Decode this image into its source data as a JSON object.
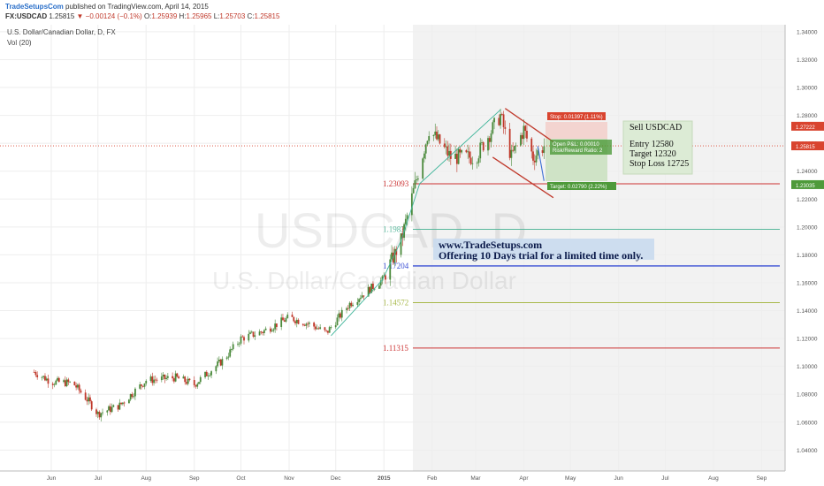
{
  "header": {
    "publisher": "TradeSetupsCom",
    "published_text": "published on TradingView.com, April 14, 2015",
    "symbol": "FX:USDCAD",
    "last": "1.25815",
    "change": "−0.00124 (−0.1%)",
    "open_label": "O:",
    "open": "1.25939",
    "high_label": "H:",
    "high": "1.25965",
    "low_label": "L:",
    "low": "1.25703",
    "close_label": "C:",
    "close": "1.25815"
  },
  "legend": {
    "instrument": "U.S. Dollar/Canadian Dollar, D, FX",
    "volume": "Vol (20)"
  },
  "watermark": {
    "ticker": "USDCAD, D",
    "name": "U.S. Dollar/Canadian Dollar"
  },
  "colors": {
    "up": "#4b8a3c",
    "down": "#c0392b",
    "fib_red": "#cc3333",
    "fib_green": "#57b79a",
    "fib_blue": "#3b4fd4",
    "fib_olive": "#a8b94a",
    "trend": "#3fb59a",
    "stop_tag": "#d9442f",
    "target_tag": "#4e9a3a"
  },
  "chart_data": {
    "type": "candlestick",
    "ylim": [
      1.025,
      1.345
    ],
    "y_ticks": [
      "1.34000",
      "1.32000",
      "1.30000",
      "1.28000",
      "1.26000",
      "1.24000",
      "1.22000",
      "1.20000",
      "1.18000",
      "1.16000",
      "1.14000",
      "1.12000",
      "1.10000",
      "1.08000",
      "1.06000",
      "1.04000"
    ],
    "x_ticks": [
      "Jun",
      "Jul",
      "Aug",
      "Sep",
      "Oct",
      "Nov",
      "Dec",
      "2015",
      "Feb",
      "Mar",
      "Apr",
      "May",
      "Jun",
      "Jul",
      "Aug",
      "Sep"
    ],
    "anchors": [
      {
        "date": "2014-05-21",
        "price": 1.096
      },
      {
        "date": "2014-06-01",
        "price": 1.089
      },
      {
        "date": "2014-06-15",
        "price": 1.088
      },
      {
        "date": "2014-06-25",
        "price": 1.075
      },
      {
        "date": "2014-07-01",
        "price": 1.066
      },
      {
        "date": "2014-07-15",
        "price": 1.072
      },
      {
        "date": "2014-08-01",
        "price": 1.09
      },
      {
        "date": "2014-08-20",
        "price": 1.092
      },
      {
        "date": "2014-09-01",
        "price": 1.087
      },
      {
        "date": "2014-09-20",
        "price": 1.105
      },
      {
        "date": "2014-10-01",
        "price": 1.12
      },
      {
        "date": "2014-10-15",
        "price": 1.125
      },
      {
        "date": "2014-11-01",
        "price": 1.135
      },
      {
        "date": "2014-11-15",
        "price": 1.13
      },
      {
        "date": "2014-11-25",
        "price": 1.124
      },
      {
        "date": "2014-12-10",
        "price": 1.145
      },
      {
        "date": "2014-12-31",
        "price": 1.162
      },
      {
        "date": "2015-01-12",
        "price": 1.19
      },
      {
        "date": "2015-01-30",
        "price": 1.27
      },
      {
        "date": "2015-02-13",
        "price": 1.25
      },
      {
        "date": "2015-03-01",
        "price": 1.25
      },
      {
        "date": "2015-03-17",
        "price": 1.28
      },
      {
        "date": "2015-03-24",
        "price": 1.25
      },
      {
        "date": "2015-04-01",
        "price": 1.27
      },
      {
        "date": "2015-04-07",
        "price": 1.25
      },
      {
        "date": "2015-04-14",
        "price": 1.2582
      }
    ],
    "fib_levels": [
      {
        "price": 1.23093,
        "label": "1.23093",
        "color": "#cc3333"
      },
      {
        "price": 1.1983,
        "label": "1.1983",
        "color": "#57b79a"
      },
      {
        "price": 1.17204,
        "label": "1.17204",
        "color": "#3b4fd4"
      },
      {
        "price": 1.14572,
        "label": "1.14572",
        "color": "#a8b94a"
      },
      {
        "price": 1.11315,
        "label": "1.11315",
        "color": "#cc3333"
      }
    ],
    "price_tags": [
      {
        "price": 1.27222,
        "label": "1.27222",
        "color": "#d9442f"
      },
      {
        "price": 1.25815,
        "label": "1.25815",
        "color": "#d9442f"
      },
      {
        "price": 1.23035,
        "label": "1.23035",
        "color": "#4e9a3a"
      }
    ],
    "trade": {
      "stop_label": "Stop: 0.01397 (1.11%)",
      "open_pnl": "Open P&L: 0.00010",
      "rr": "Risk/Reward Ratio: 2",
      "target_label": "Target: 0.02790 (2.22%)"
    }
  },
  "annotation": {
    "title": "Sell USDCAD",
    "entry": "Entry 12580",
    "target": "Target 12320",
    "stop": "Stop Loss 12725"
  },
  "promo": {
    "line1": "www.TradeSetups.com",
    "line2": "Offering 10 Days trial for a limited time only."
  }
}
